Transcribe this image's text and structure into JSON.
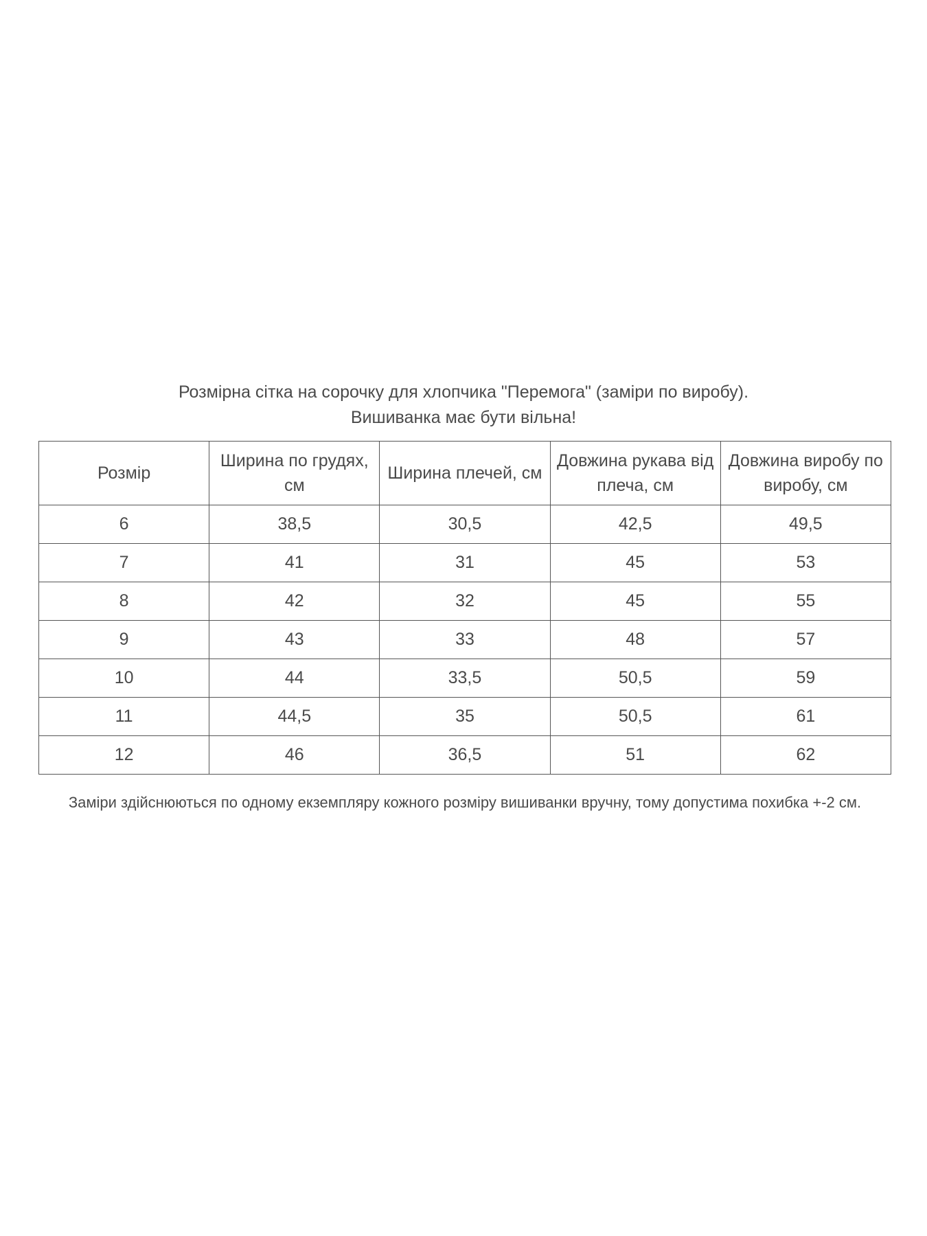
{
  "title": {
    "line1": "Розмірна сітка на сорочку для хлопчика \"Перемога\" (заміри по виробу).",
    "line2": "Вишиванка має бути вільна!"
  },
  "table": {
    "headers": [
      "Розмір",
      "Ширина по грудях, см",
      "Ширина плечей, см",
      "Довжина рукава від плеча, см",
      "Довжина виробу по виробу, см"
    ],
    "rows": [
      [
        "6",
        "38,5",
        "30,5",
        "42,5",
        "49,5"
      ],
      [
        "7",
        "41",
        "31",
        "45",
        "53"
      ],
      [
        "8",
        "42",
        "32",
        "45",
        "55"
      ],
      [
        "9",
        "43",
        "33",
        "48",
        "57"
      ],
      [
        "10",
        "44",
        "33,5",
        "50,5",
        "59"
      ],
      [
        "11",
        "44,5",
        "35",
        "50,5",
        "61"
      ],
      [
        "12",
        "46",
        "36,5",
        "51",
        "62"
      ]
    ]
  },
  "note": "Заміри здійснюються  по одному екземпляру кожного розміру вишиванки вручну, тому допустима похибка +-2 см."
}
